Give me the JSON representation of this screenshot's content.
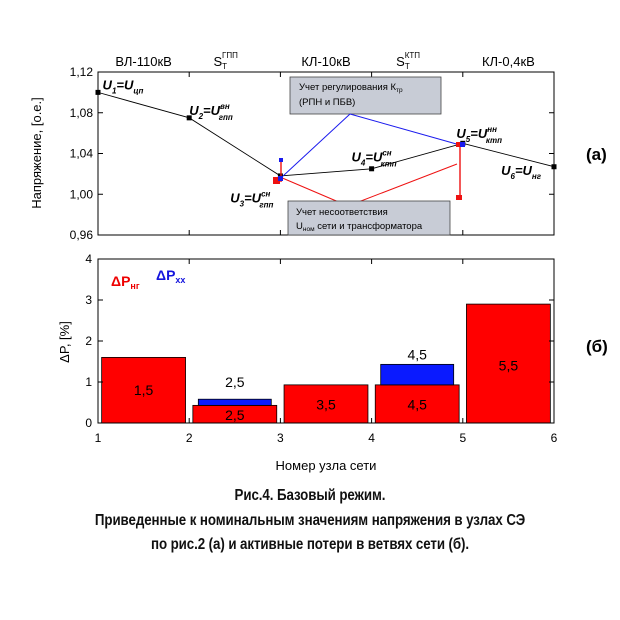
{
  "chart_data": [
    {
      "id": "a",
      "type": "line",
      "panel_label": "(а)",
      "ylabel": "Напряжение, [о.е.]",
      "ylim": [
        0.96,
        1.12
      ],
      "yticks": [
        0.96,
        1.0,
        1.04,
        1.08,
        1.12
      ],
      "ytick_labels": [
        "0,96",
        "1,00",
        "1,04",
        "1,08",
        "1,12"
      ],
      "xlim": [
        1,
        6
      ],
      "section_labels": [
        {
          "text": "ВЛ-110кВ",
          "x": 1.5
        },
        {
          "text": "S",
          "sub": "Т",
          "sup": "ГПП",
          "x": 2.4
        },
        {
          "text": "КЛ-10кВ",
          "x": 3.5
        },
        {
          "text": "S",
          "sub": "Т",
          "sup": "КТП",
          "x": 4.4
        },
        {
          "text": "КЛ-0,4кВ",
          "x": 5.5
        }
      ],
      "series": [
        {
          "name": "U",
          "x": [
            1,
            2,
            3,
            4,
            5,
            6
          ],
          "y": [
            1.1,
            1.075,
            1.018,
            1.025,
            1.05,
            1.027
          ]
        }
      ],
      "annotations": [
        {
          "base": "U",
          "sub": "1",
          "rest": "=U",
          "rest_sub": "цп",
          "sup": "",
          "x": 1.05,
          "y": 1.103
        },
        {
          "base": "U",
          "sub": "2",
          "rest": "=U",
          "rest_sub": "гпп",
          "sup": "вн",
          "x": 2.0,
          "y": 1.078
        },
        {
          "base": "U",
          "sub": "3",
          "rest": "=U",
          "rest_sub": "гпп",
          "sup": "сн",
          "x": 2.45,
          "y": 0.992
        },
        {
          "base": "U",
          "sub": "4",
          "rest": "=U",
          "rest_sub": "ктп",
          "sup": "сн",
          "x": 3.78,
          "y": 1.032
        },
        {
          "base": "U",
          "sub": "5",
          "rest": "=U",
          "rest_sub": "ктп",
          "sup": "нн",
          "x": 4.93,
          "y": 1.055
        },
        {
          "base": "U",
          "sub": "6",
          "rest": "=U",
          "rest_sub": "нг",
          "sup": "",
          "x": 5.42,
          "y": 1.019
        }
      ],
      "callouts": [
        {
          "line1": "Учет регулирования К",
          "line1_sub": "тр",
          "line2": "(РПН и ПБВ)",
          "color": "#1a1aee"
        },
        {
          "line1": "Учет несоответствия",
          "line2_pre": "U",
          "line2_sub": "ном",
          "line2": " сети и трансформатора",
          "color": "#ee1111"
        }
      ]
    },
    {
      "id": "b",
      "type": "bar",
      "panel_label": "(б)",
      "ylabel": "ΔP, [%]",
      "xlabel": "Номер узла сети",
      "ylim": [
        0,
        4
      ],
      "yticks": [
        0,
        1,
        2,
        3,
        4
      ],
      "ytick_labels": [
        "0",
        "1",
        "2",
        "3",
        "4"
      ],
      "xlim": [
        1,
        6
      ],
      "xticks": [
        1,
        2,
        3,
        4,
        5,
        6
      ],
      "xtick_labels": [
        "1",
        "2",
        "3",
        "4",
        "5",
        "6"
      ],
      "legend": [
        {
          "text": "ΔP",
          "sub": "нг",
          "color": "#ee0000"
        },
        {
          "text": "ΔP",
          "sub": "хх",
          "color": "#1414dd"
        }
      ],
      "series": [
        {
          "name": "ΔP нг",
          "color": "#ff0000",
          "x": [
            1.5,
            2.5,
            3.5,
            4.5,
            5.5
          ],
          "values": [
            1.6,
            0.43,
            0.93,
            0.93,
            2.9
          ]
        },
        {
          "name": "ΔP хх",
          "color": "#0a1aff",
          "x": [
            2.5,
            4.5
          ],
          "values": [
            0.15,
            0.5
          ]
        }
      ],
      "bar_labels": [
        {
          "text": "1,5",
          "x": 1.5,
          "y": 0.8
        },
        {
          "text": "2,5",
          "x": 2.5,
          "y": 0.2
        },
        {
          "text": "2,5",
          "x": 2.5,
          "y": 1.0
        },
        {
          "text": "3,5",
          "x": 3.5,
          "y": 0.45
        },
        {
          "text": "4,5",
          "x": 4.5,
          "y": 0.45
        },
        {
          "text": "4,5",
          "x": 4.5,
          "y": 1.67
        },
        {
          "text": "5,5",
          "x": 5.5,
          "y": 1.4
        }
      ]
    }
  ],
  "caption": {
    "line1": "Рис.4. Базовый режим.",
    "line2": "Приведенные к номинальным значениям напряжения в узлах СЭ",
    "line3": "по рис.2 (а) и активные потери в ветвях сети (б)."
  }
}
